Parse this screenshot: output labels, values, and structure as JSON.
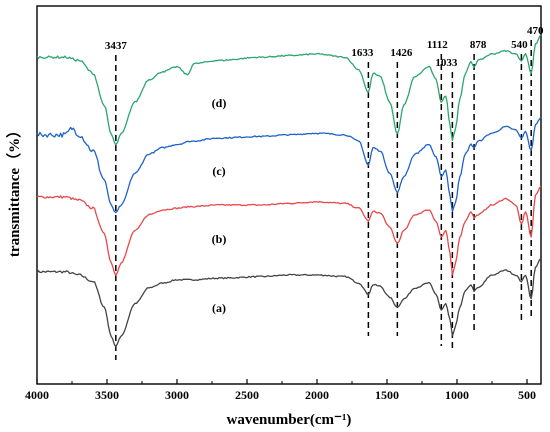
{
  "chart_data": {
    "type": "line",
    "xlabel": "wavenumber(cm⁻¹)",
    "ylabel": "transmittance（%）",
    "xlim": [
      4000,
      400
    ],
    "x_reversed": true,
    "x_ticks": [
      4000,
      3500,
      3000,
      2500,
      2000,
      1500,
      1000,
      500
    ],
    "y_ticks_shown": false,
    "grid": false,
    "series": [
      {
        "name": "(a)",
        "color": "#444444",
        "points": [
          [
            4000,
            0.52
          ],
          [
            3800,
            0.52
          ],
          [
            3700,
            0.5
          ],
          [
            3600,
            0.46
          ],
          [
            3520,
            0.3
          ],
          [
            3470,
            0.12
          ],
          [
            3437,
            0.05
          ],
          [
            3400,
            0.12
          ],
          [
            3300,
            0.32
          ],
          [
            3200,
            0.42
          ],
          [
            3100,
            0.45
          ],
          [
            3000,
            0.47
          ],
          [
            2900,
            0.47
          ],
          [
            2700,
            0.48
          ],
          [
            2400,
            0.49
          ],
          [
            2200,
            0.5
          ],
          [
            2000,
            0.5
          ],
          [
            1800,
            0.49
          ],
          [
            1700,
            0.45
          ],
          [
            1633,
            0.38
          ],
          [
            1600,
            0.44
          ],
          [
            1550,
            0.43
          ],
          [
            1480,
            0.36
          ],
          [
            1426,
            0.3
          ],
          [
            1380,
            0.35
          ],
          [
            1300,
            0.42
          ],
          [
            1200,
            0.45
          ],
          [
            1150,
            0.38
          ],
          [
            1112,
            0.28
          ],
          [
            1080,
            0.32
          ],
          [
            1050,
            0.22
          ],
          [
            1033,
            0.12
          ],
          [
            1010,
            0.18
          ],
          [
            980,
            0.3
          ],
          [
            940,
            0.4
          ],
          [
            900,
            0.44
          ],
          [
            878,
            0.4
          ],
          [
            850,
            0.42
          ],
          [
            750,
            0.5
          ],
          [
            650,
            0.53
          ],
          [
            580,
            0.5
          ],
          [
            540,
            0.46
          ],
          [
            510,
            0.5
          ],
          [
            470,
            0.35
          ],
          [
            440,
            0.55
          ],
          [
            400,
            0.6
          ]
        ]
      },
      {
        "name": "(b)",
        "color": "#e8484b",
        "points": [
          [
            4000,
            0.55
          ],
          [
            3800,
            0.55
          ],
          [
            3700,
            0.53
          ],
          [
            3600,
            0.48
          ],
          [
            3520,
            0.32
          ],
          [
            3470,
            0.14
          ],
          [
            3437,
            0.06
          ],
          [
            3400,
            0.14
          ],
          [
            3300,
            0.34
          ],
          [
            3200,
            0.44
          ],
          [
            3100,
            0.47
          ],
          [
            3000,
            0.48
          ],
          [
            2900,
            0.49
          ],
          [
            2700,
            0.5
          ],
          [
            2400,
            0.5
          ],
          [
            2200,
            0.51
          ],
          [
            2000,
            0.52
          ],
          [
            1800,
            0.51
          ],
          [
            1700,
            0.48
          ],
          [
            1633,
            0.4
          ],
          [
            1600,
            0.46
          ],
          [
            1550,
            0.45
          ],
          [
            1480,
            0.36
          ],
          [
            1426,
            0.26
          ],
          [
            1380,
            0.34
          ],
          [
            1300,
            0.44
          ],
          [
            1200,
            0.47
          ],
          [
            1150,
            0.4
          ],
          [
            1112,
            0.3
          ],
          [
            1080,
            0.34
          ],
          [
            1050,
            0.2
          ],
          [
            1033,
            0.06
          ],
          [
            1010,
            0.14
          ],
          [
            980,
            0.3
          ],
          [
            940,
            0.4
          ],
          [
            900,
            0.46
          ],
          [
            878,
            0.42
          ],
          [
            850,
            0.44
          ],
          [
            750,
            0.5
          ],
          [
            650,
            0.54
          ],
          [
            580,
            0.5
          ],
          [
            540,
            0.38
          ],
          [
            510,
            0.46
          ],
          [
            470,
            0.3
          ],
          [
            440,
            0.56
          ],
          [
            400,
            0.62
          ]
        ]
      },
      {
        "name": "(c)",
        "color": "#1f63c9",
        "points": [
          [
            4000,
            0.52
          ],
          [
            3800,
            0.52
          ],
          [
            3750,
            0.56
          ],
          [
            3700,
            0.52
          ],
          [
            3600,
            0.42
          ],
          [
            3520,
            0.24
          ],
          [
            3470,
            0.08
          ],
          [
            3437,
            0.03
          ],
          [
            3400,
            0.08
          ],
          [
            3300,
            0.28
          ],
          [
            3200,
            0.4
          ],
          [
            3100,
            0.44
          ],
          [
            3000,
            0.46
          ],
          [
            2900,
            0.48
          ],
          [
            2700,
            0.5
          ],
          [
            2400,
            0.51
          ],
          [
            2200,
            0.52
          ],
          [
            2000,
            0.53
          ],
          [
            1800,
            0.52
          ],
          [
            1700,
            0.48
          ],
          [
            1633,
            0.33
          ],
          [
            1600,
            0.44
          ],
          [
            1550,
            0.42
          ],
          [
            1480,
            0.28
          ],
          [
            1426,
            0.16
          ],
          [
            1380,
            0.26
          ],
          [
            1300,
            0.4
          ],
          [
            1200,
            0.46
          ],
          [
            1150,
            0.38
          ],
          [
            1112,
            0.26
          ],
          [
            1080,
            0.3
          ],
          [
            1050,
            0.14
          ],
          [
            1033,
            0.04
          ],
          [
            1010,
            0.1
          ],
          [
            980,
            0.26
          ],
          [
            940,
            0.4
          ],
          [
            900,
            0.46
          ],
          [
            878,
            0.44
          ],
          [
            850,
            0.48
          ],
          [
            750,
            0.53
          ],
          [
            650,
            0.57
          ],
          [
            580,
            0.55
          ],
          [
            540,
            0.5
          ],
          [
            510,
            0.54
          ],
          [
            470,
            0.42
          ],
          [
            440,
            0.58
          ],
          [
            400,
            0.63
          ]
        ]
      },
      {
        "name": "(d)",
        "color": "#2ca56e",
        "points": [
          [
            4000,
            0.58
          ],
          [
            3800,
            0.58
          ],
          [
            3700,
            0.56
          ],
          [
            3600,
            0.48
          ],
          [
            3520,
            0.28
          ],
          [
            3470,
            0.1
          ],
          [
            3437,
            0.03
          ],
          [
            3400,
            0.1
          ],
          [
            3300,
            0.3
          ],
          [
            3200,
            0.44
          ],
          [
            3100,
            0.49
          ],
          [
            3000,
            0.52
          ],
          [
            2925,
            0.47
          ],
          [
            2880,
            0.54
          ],
          [
            2700,
            0.56
          ],
          [
            2400,
            0.58
          ],
          [
            2200,
            0.59
          ],
          [
            2000,
            0.6
          ],
          [
            1800,
            0.58
          ],
          [
            1700,
            0.5
          ],
          [
            1633,
            0.36
          ],
          [
            1600,
            0.48
          ],
          [
            1550,
            0.46
          ],
          [
            1480,
            0.3
          ],
          [
            1426,
            0.1
          ],
          [
            1380,
            0.28
          ],
          [
            1300,
            0.46
          ],
          [
            1200,
            0.52
          ],
          [
            1150,
            0.44
          ],
          [
            1112,
            0.3
          ],
          [
            1080,
            0.34
          ],
          [
            1050,
            0.16
          ],
          [
            1033,
            0.06
          ],
          [
            1010,
            0.14
          ],
          [
            980,
            0.32
          ],
          [
            940,
            0.48
          ],
          [
            900,
            0.55
          ],
          [
            878,
            0.52
          ],
          [
            850,
            0.56
          ],
          [
            750,
            0.6
          ],
          [
            650,
            0.62
          ],
          [
            580,
            0.6
          ],
          [
            540,
            0.56
          ],
          [
            510,
            0.6
          ],
          [
            470,
            0.48
          ],
          [
            440,
            0.66
          ],
          [
            400,
            0.72
          ]
        ]
      }
    ],
    "annotations": [
      {
        "wavenumber": 3437,
        "label": "3437"
      },
      {
        "wavenumber": 1633,
        "label": "1633"
      },
      {
        "wavenumber": 1426,
        "label": "1426"
      },
      {
        "wavenumber": 1112,
        "label": "1112"
      },
      {
        "wavenumber": 1033,
        "label": "1033"
      },
      {
        "wavenumber": 878,
        "label": "878"
      },
      {
        "wavenumber": 540,
        "label": "540"
      },
      {
        "wavenumber": 470,
        "label": "470"
      }
    ],
    "reference_lines": "dashed vertical black lines at each annotated wavenumber"
  }
}
